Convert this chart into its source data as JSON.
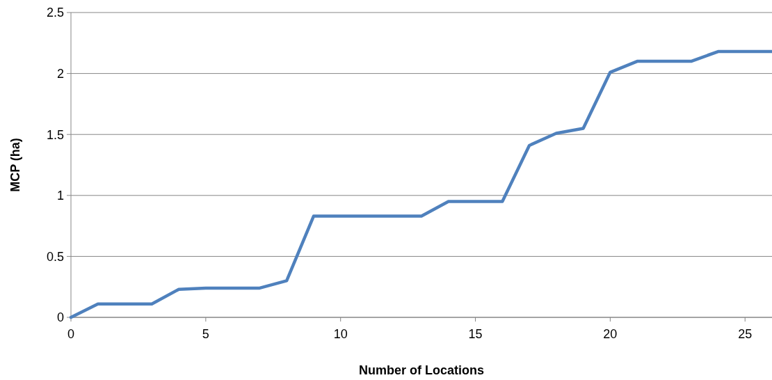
{
  "chart_data": {
    "type": "line",
    "xlabel": "Number of Locations",
    "ylabel": "MCP (ha)",
    "x": [
      0,
      1,
      2,
      3,
      4,
      5,
      6,
      7,
      8,
      9,
      10,
      11,
      12,
      13,
      14,
      15,
      16,
      17,
      18,
      19,
      20,
      21,
      22,
      23,
      24,
      25,
      26
    ],
    "series": [
      {
        "color": "#4f81bd",
        "values": [
          0,
          0.11,
          0.11,
          0.11,
          0.23,
          0.24,
          0.24,
          0.24,
          0.3,
          0.83,
          0.83,
          0.83,
          0.83,
          0.83,
          0.95,
          0.95,
          0.95,
          1.41,
          1.51,
          1.55,
          2.01,
          2.1,
          2.1,
          2.1,
          2.18,
          2.18,
          2.18
        ]
      }
    ],
    "xlim": [
      0,
      26
    ],
    "xticks": [
      0,
      5,
      10,
      15,
      20,
      25
    ],
    "ylim": [
      0,
      2.5
    ],
    "yticks": [
      0,
      0.5,
      1,
      1.5,
      2,
      2.5
    ],
    "grid": "y",
    "marker": "none",
    "line_style": "solid"
  }
}
